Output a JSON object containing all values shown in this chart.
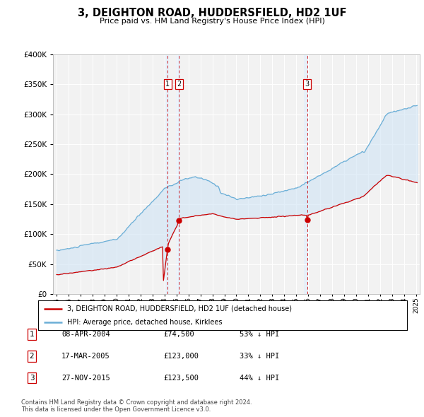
{
  "title": "3, DEIGHTON ROAD, HUDDERSFIELD, HD2 1UF",
  "subtitle": "Price paid vs. HM Land Registry's House Price Index (HPI)",
  "legend_label_red": "3, DEIGHTON ROAD, HUDDERSFIELD, HD2 1UF (detached house)",
  "legend_label_blue": "HPI: Average price, detached house, Kirklees",
  "footer": "Contains HM Land Registry data © Crown copyright and database right 2024.\nThis data is licensed under the Open Government Licence v3.0.",
  "transactions": [
    {
      "num": 1,
      "date": "08-APR-2004",
      "price": 74500,
      "hpi_diff": "53% ↓ HPI",
      "year": 2004.27
    },
    {
      "num": 2,
      "date": "17-MAR-2005",
      "price": 123000,
      "hpi_diff": "33% ↓ HPI",
      "year": 2005.21
    },
    {
      "num": 3,
      "date": "27-NOV-2015",
      "price": 123500,
      "hpi_diff": "44% ↓ HPI",
      "year": 2015.9
    }
  ],
  "hpi_color": "#6aaed6",
  "price_color": "#cc0000",
  "background_color": "#ffffff",
  "plot_bg_color": "#f2f2f2",
  "grid_color": "#ffffff",
  "fill_color": "#d0e4f5",
  "ylim": [
    0,
    400000
  ],
  "xlim_start": 1994.7,
  "xlim_end": 2025.3
}
